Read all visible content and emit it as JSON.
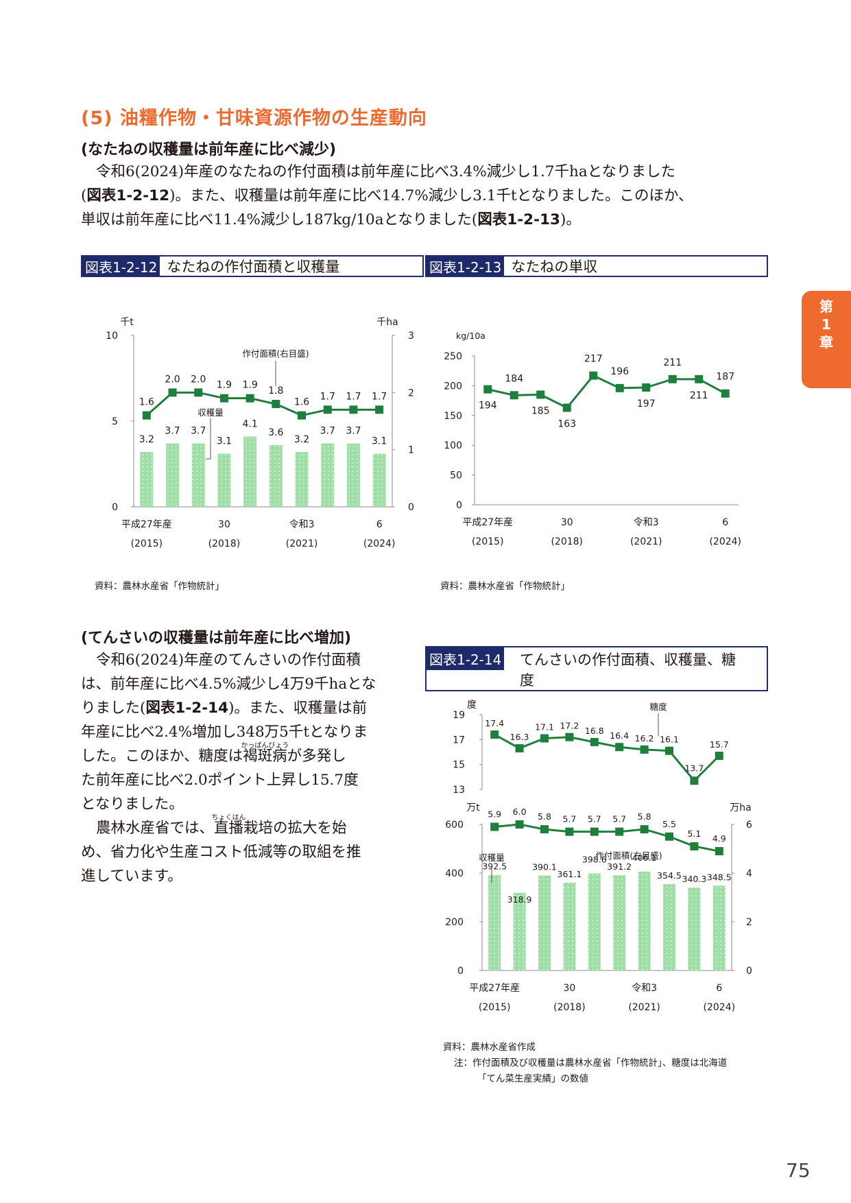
{
  "section": {
    "heading": "(5) 油糧作物・甘味資源作物の生産動向"
  },
  "rapeseed_text": {
    "subheading": "(なたねの収穫量は前年産に比べ減少)",
    "line1": "令和6(2024)年産のなたねの作付面積は前年産に比べ3.4%減少し1.7千haとなりました",
    "line2_a": "(",
    "line2_ref": "図表1-2-12",
    "line2_b": ")。また、収穫量は前年産に比べ14.7%減少し3.1千tとなりました。このほか、",
    "line3_a": "単収は前年産に比べ11.4%減少し187kg/10aとなりました(",
    "line3_ref": "図表1-2-13",
    "line3_b": ")。"
  },
  "figure_12": {
    "number": "図表1-2-12",
    "title": "なたねの作付面積と収穫量",
    "source": "資料：農林水産省「作物統計」"
  },
  "figure_13": {
    "number": "図表1-2-13",
    "title": "なたねの単収",
    "source": "資料：農林水産省「作物統計」"
  },
  "sugarbeet_text": {
    "subheading": "(てんさいの収穫量は前年産に比べ増加)",
    "line1": "令和6(2024)年産のてんさいの作付面積",
    "line2": "は、前年産に比べ4.5%減少し4万9千haとな",
    "line3_a": "りました(",
    "line3_ref": "図表1-2-14",
    "line3_b": ")。また、収穫量は前",
    "line4": "年産に比べ2.4%増加し348万5千tとなりま",
    "line5_a": "した。このほか、糖度は",
    "line5_ruby_base": "褐斑病",
    "line5_ruby_text": "かっぱんびょう",
    "line5_b": "が多発し",
    "line6": "た前年産に比べ2.0ポイント上昇し15.7度",
    "line7": "となりました。",
    "line8_a": "農林水産省では、",
    "line8_ruby_base": "直播",
    "line8_ruby_text": "ちょくはん",
    "line8_b": "栽培の拡大を始",
    "line9": "め、省力化や生産コスト低減等の取組を推",
    "line10": "進しています。"
  },
  "figure_14": {
    "number": "図表1-2-14",
    "title_line1": "てんさいの作付面積、収穫量、糖",
    "title_line2": "度",
    "source": "資料：農林水産省作成",
    "note1": "注：作付面積及び収穫量は農林水産省「作物統計」、糖度は北海道",
    "note2": "「てん菜生産実績」の数値"
  },
  "chapter_tab": {
    "line1": "第",
    "line2": "1",
    "line3": "章"
  },
  "page_number": "75",
  "colors": {
    "accent_orange": "#ef6a2f",
    "navy": "#1f2a6b",
    "line_green": "#1e7e3c",
    "bar_green": "#9fdea7"
  },
  "chart_data": [
    {
      "id": "fig12",
      "type": "bar+line",
      "categories": [
        "平成27年産\n(2015)",
        "",
        "",
        "30\n(2018)",
        "",
        "",
        "令和3\n(2021)",
        "",
        "",
        "6\n(2024)"
      ],
      "x_tick_labels": [
        [
          "平成27年産",
          "(2015)"
        ],
        [
          "30",
          "(2018)"
        ],
        [
          "令和3",
          "(2021)"
        ],
        [
          "6",
          "(2024)"
        ]
      ],
      "x_tick_index": [
        0,
        3,
        6,
        9
      ],
      "left_axis": {
        "unit": "千t",
        "ylim": [
          0,
          10
        ],
        "ticks": [
          0,
          5,
          10
        ]
      },
      "right_axis": {
        "unit": "千ha",
        "ylim": [
          0,
          3
        ],
        "ticks": [
          0,
          1,
          2,
          3
        ]
      },
      "series": [
        {
          "name": "収穫量",
          "kind": "bar",
          "axis": "left",
          "values": [
            3.2,
            3.7,
            3.7,
            3.1,
            4.1,
            3.6,
            3.2,
            3.7,
            3.7,
            3.1
          ]
        },
        {
          "name": "作付面積(右目盛)",
          "kind": "line",
          "axis": "right",
          "values": [
            1.6,
            2.0,
            2.0,
            1.9,
            1.9,
            1.8,
            1.6,
            1.7,
            1.7,
            1.7
          ]
        }
      ]
    },
    {
      "id": "fig13",
      "type": "line",
      "x_tick_labels": [
        [
          "平成27年産",
          "(2015)"
        ],
        [
          "30",
          "(2018)"
        ],
        [
          "令和3",
          "(2021)"
        ],
        [
          "6",
          "(2024)"
        ]
      ],
      "x_tick_index": [
        0,
        3,
        6,
        9
      ],
      "y_axis": {
        "unit": "kg/10a",
        "ylim": [
          0,
          250
        ],
        "ticks": [
          0,
          50,
          100,
          150,
          200,
          250
        ]
      },
      "series": [
        {
          "name": "",
          "values": [
            194,
            184,
            185,
            163,
            217,
            196,
            197,
            211,
            211,
            187
          ]
        }
      ]
    },
    {
      "id": "fig14",
      "type": "bar+line",
      "x_tick_labels": [
        [
          "平成27年産",
          "(2015)"
        ],
        [
          "30",
          "(2018)"
        ],
        [
          "令和3",
          "(2021)"
        ],
        [
          "6",
          "(2024)"
        ]
      ],
      "x_tick_index": [
        0,
        3,
        6,
        9
      ],
      "top_axis": {
        "unit": "度",
        "ylim": [
          13,
          19
        ],
        "ticks": [
          13,
          15,
          17,
          19
        ]
      },
      "left_axis": {
        "unit": "万t",
        "ylim": [
          0,
          600
        ],
        "ticks": [
          0,
          200,
          400,
          600
        ]
      },
      "right_axis": {
        "unit": "万ha",
        "ylim": [
          0,
          6
        ],
        "ticks": [
          0,
          2,
          4,
          6
        ]
      },
      "series": [
        {
          "name": "糖度",
          "kind": "line",
          "axis": "top",
          "values": [
            17.4,
            16.3,
            17.1,
            17.2,
            16.8,
            16.4,
            16.2,
            16.1,
            13.7,
            15.7
          ]
        },
        {
          "name": "収穫量",
          "kind": "bar",
          "axis": "left",
          "values": [
            392.5,
            318.9,
            390.1,
            361.1,
            398.6,
            391.2,
            406.1,
            354.5,
            340.3,
            348.5
          ]
        },
        {
          "name": "作付面積(右目盛)",
          "kind": "line",
          "axis": "right",
          "values": [
            5.9,
            6.0,
            5.8,
            5.7,
            5.7,
            5.7,
            5.8,
            5.5,
            5.1,
            4.9
          ]
        }
      ]
    }
  ]
}
